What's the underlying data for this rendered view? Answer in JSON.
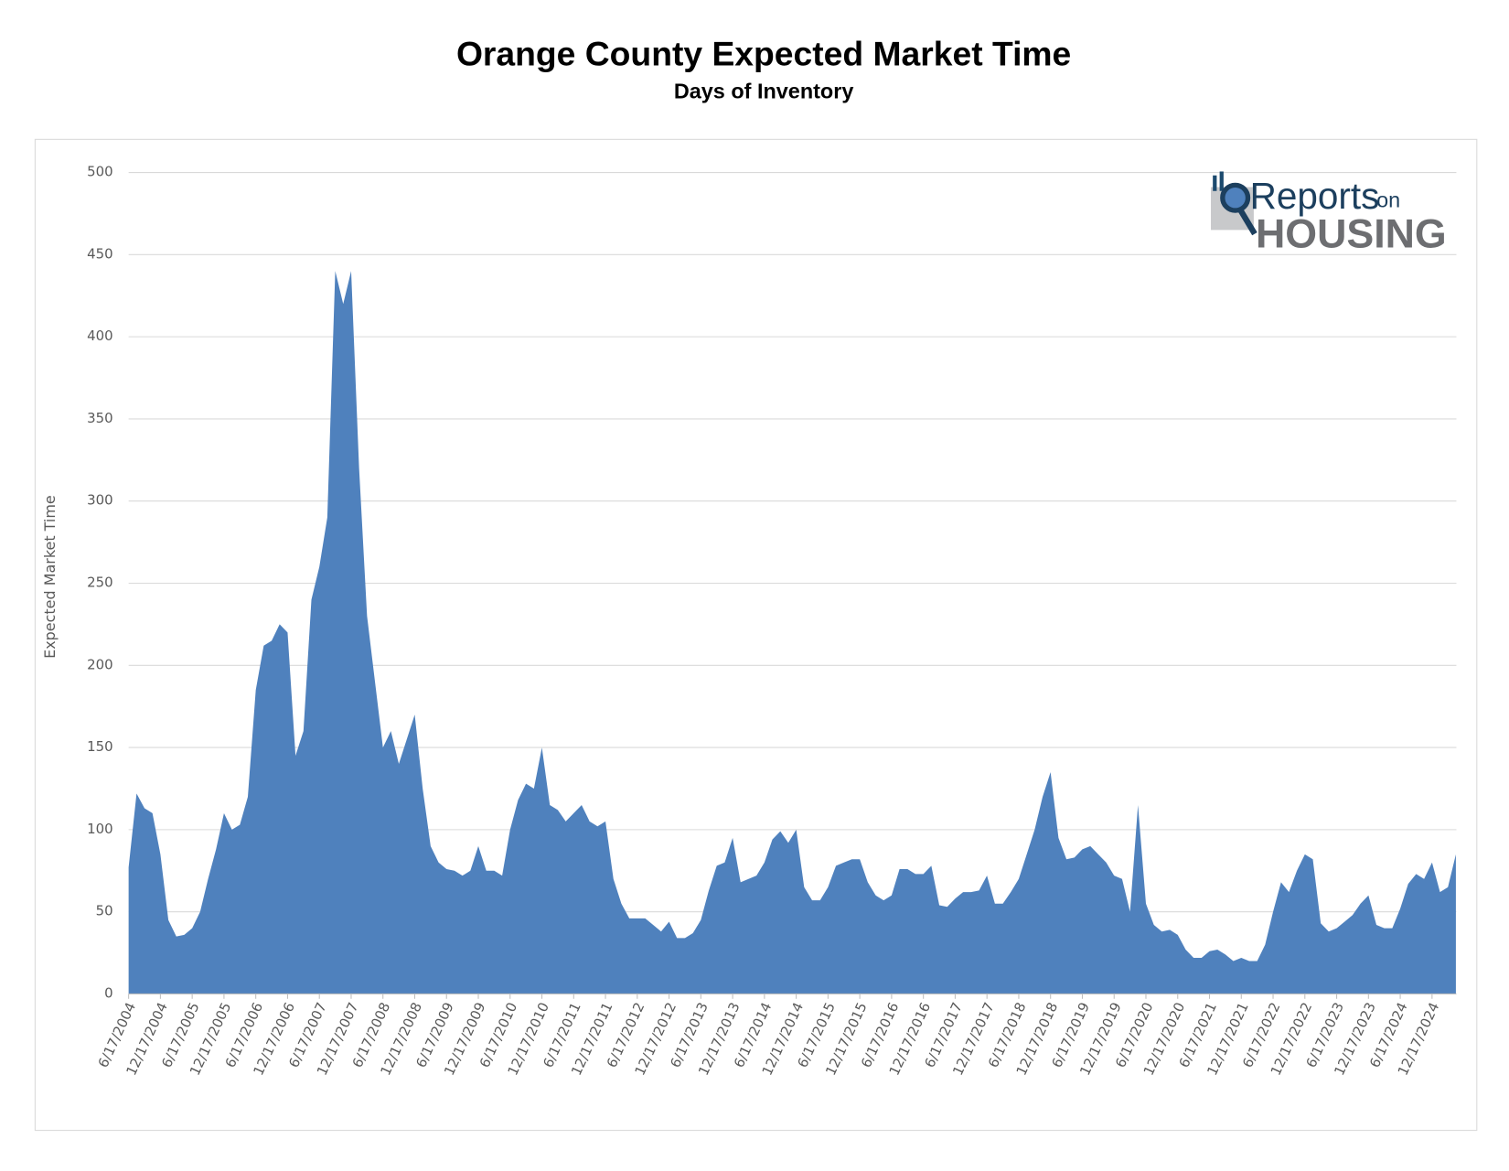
{
  "chart_data": {
    "type": "area",
    "title": "Orange County Expected Market Time",
    "subtitle": "Days of Inventory",
    "y_label": "Expected Market Time",
    "logo": {
      "name": "Reports",
      "on": "on",
      "brand": "HOUSING"
    },
    "color": "#4f81bd",
    "grid": true,
    "ylim": [
      0,
      500
    ],
    "yticks": [
      0,
      50,
      100,
      150,
      200,
      250,
      300,
      350,
      400,
      450,
      500
    ],
    "categories": [
      "6/17/2004",
      null,
      null,
      null,
      "12/17/2004",
      null,
      null,
      null,
      "6/17/2005",
      null,
      null,
      null,
      "12/17/2005",
      null,
      null,
      null,
      "6/17/2006",
      null,
      null,
      null,
      "12/17/2006",
      null,
      null,
      null,
      "6/17/2007",
      null,
      null,
      null,
      "12/17/2007",
      null,
      null,
      null,
      "6/17/2008",
      null,
      null,
      null,
      "12/17/2008",
      null,
      null,
      null,
      "6/17/2009",
      null,
      null,
      null,
      "12/17/2009",
      null,
      null,
      null,
      "6/17/2010",
      null,
      null,
      null,
      "12/17/2010",
      null,
      null,
      null,
      "6/17/2011",
      null,
      null,
      null,
      "12/17/2011",
      null,
      null,
      null,
      "6/17/2012",
      null,
      null,
      null,
      "12/17/2012",
      null,
      null,
      null,
      "6/17/2013",
      null,
      null,
      null,
      "12/17/2013",
      null,
      null,
      null,
      "6/17/2014",
      null,
      null,
      null,
      "12/17/2014",
      null,
      null,
      null,
      "6/17/2015",
      null,
      null,
      null,
      "12/17/2015",
      null,
      null,
      null,
      "6/17/2016",
      null,
      null,
      null,
      "12/17/2016",
      null,
      null,
      null,
      "6/17/2017",
      null,
      null,
      null,
      "12/17/2017",
      null,
      null,
      null,
      "6/17/2018",
      null,
      null,
      null,
      "12/17/2018",
      null,
      null,
      null,
      "6/17/2019",
      null,
      null,
      null,
      "12/17/2019",
      null,
      null,
      null,
      "6/17/2020",
      null,
      null,
      null,
      "12/17/2020",
      null,
      null,
      null,
      "6/17/2021",
      null,
      null,
      null,
      "12/17/2021",
      null,
      null,
      null,
      "6/17/2022",
      null,
      null,
      null,
      "12/17/2022",
      null,
      null,
      null,
      "6/17/2023",
      null,
      null,
      null,
      "12/17/2023",
      null,
      null,
      null,
      "6/17/2024",
      null,
      null,
      null,
      "12/17/2024",
      null,
      null,
      null
    ],
    "values": [
      77,
      122,
      113,
      110,
      85,
      45,
      35,
      36,
      40,
      50,
      70,
      88,
      110,
      100,
      103,
      120,
      185,
      212,
      215,
      225,
      220,
      145,
      160,
      240,
      260,
      290,
      440,
      420,
      440,
      320,
      230,
      190,
      150,
      160,
      140,
      155,
      170,
      125,
      90,
      80,
      76,
      75,
      72,
      75,
      90,
      75,
      75,
      72,
      100,
      118,
      128,
      125,
      150,
      115,
      112,
      105,
      110,
      115,
      105,
      102,
      105,
      70,
      55,
      46,
      46,
      46,
      42,
      38,
      44,
      34,
      34,
      37,
      45,
      63,
      78,
      80,
      95,
      68,
      70,
      72,
      80,
      94,
      99,
      92,
      100,
      65,
      57,
      57,
      65,
      78,
      80,
      82,
      82,
      68,
      60,
      57,
      60,
      76,
      76,
      73,
      73,
      78,
      54,
      53,
      58,
      62,
      62,
      63,
      72,
      55,
      55,
      62,
      70,
      85,
      100,
      120,
      135,
      95,
      82,
      83,
      88,
      90,
      85,
      80,
      72,
      70,
      50,
      115,
      55,
      42,
      38,
      39,
      36,
      27,
      22,
      22,
      26,
      27,
      24,
      20,
      22,
      20,
      20,
      30,
      50,
      68,
      62,
      75,
      85,
      82,
      43,
      38,
      40,
      44,
      48,
      55,
      60,
      42,
      40,
      40,
      52,
      67,
      73,
      70,
      80,
      62,
      65,
      85
    ]
  }
}
